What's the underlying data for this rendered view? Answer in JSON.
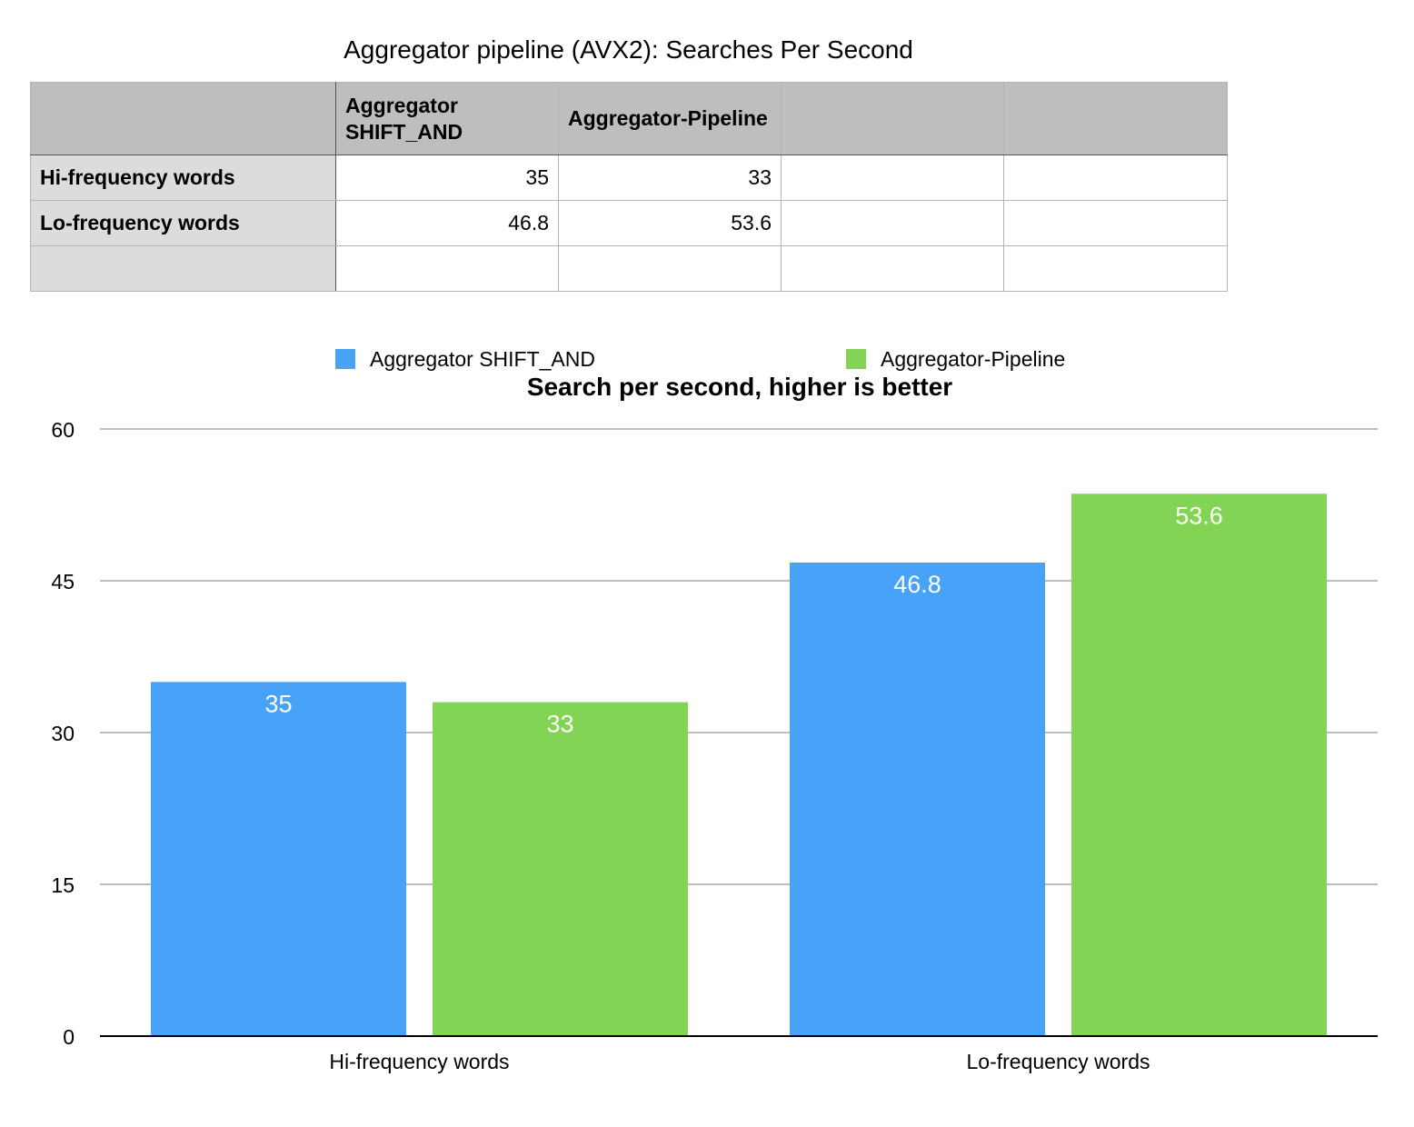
{
  "page_title": "Aggregator pipeline (AVX2): Searches Per Second",
  "table": {
    "columns": [
      "",
      "Aggregator SHIFT_AND",
      "Aggregator-Pipeline",
      "",
      ""
    ],
    "rows": [
      {
        "label": "Hi-frequency words",
        "cells": [
          "35",
          "33",
          "",
          ""
        ]
      },
      {
        "label": "Lo-frequency words",
        "cells": [
          "46.8",
          "53.6",
          "",
          ""
        ]
      },
      {
        "label": "",
        "cells": [
          "",
          "",
          "",
          ""
        ]
      }
    ]
  },
  "chart_data": {
    "type": "bar",
    "title": "Search per second, higher is better",
    "xlabel": "",
    "ylabel": "",
    "categories": [
      "Hi-frequency words",
      "Lo-frequency words"
    ],
    "series": [
      {
        "name": "Aggregator SHIFT_AND",
        "values": [
          35,
          46.8
        ],
        "color": "#48a2f8"
      },
      {
        "name": "Aggregator-Pipeline",
        "values": [
          33,
          53.6
        ],
        "color": "#82d554"
      }
    ],
    "ylim": [
      0,
      60
    ],
    "yticks": [
      0,
      15,
      30,
      45,
      60
    ],
    "grid": true,
    "legend_position": "top",
    "data_labels": true
  }
}
